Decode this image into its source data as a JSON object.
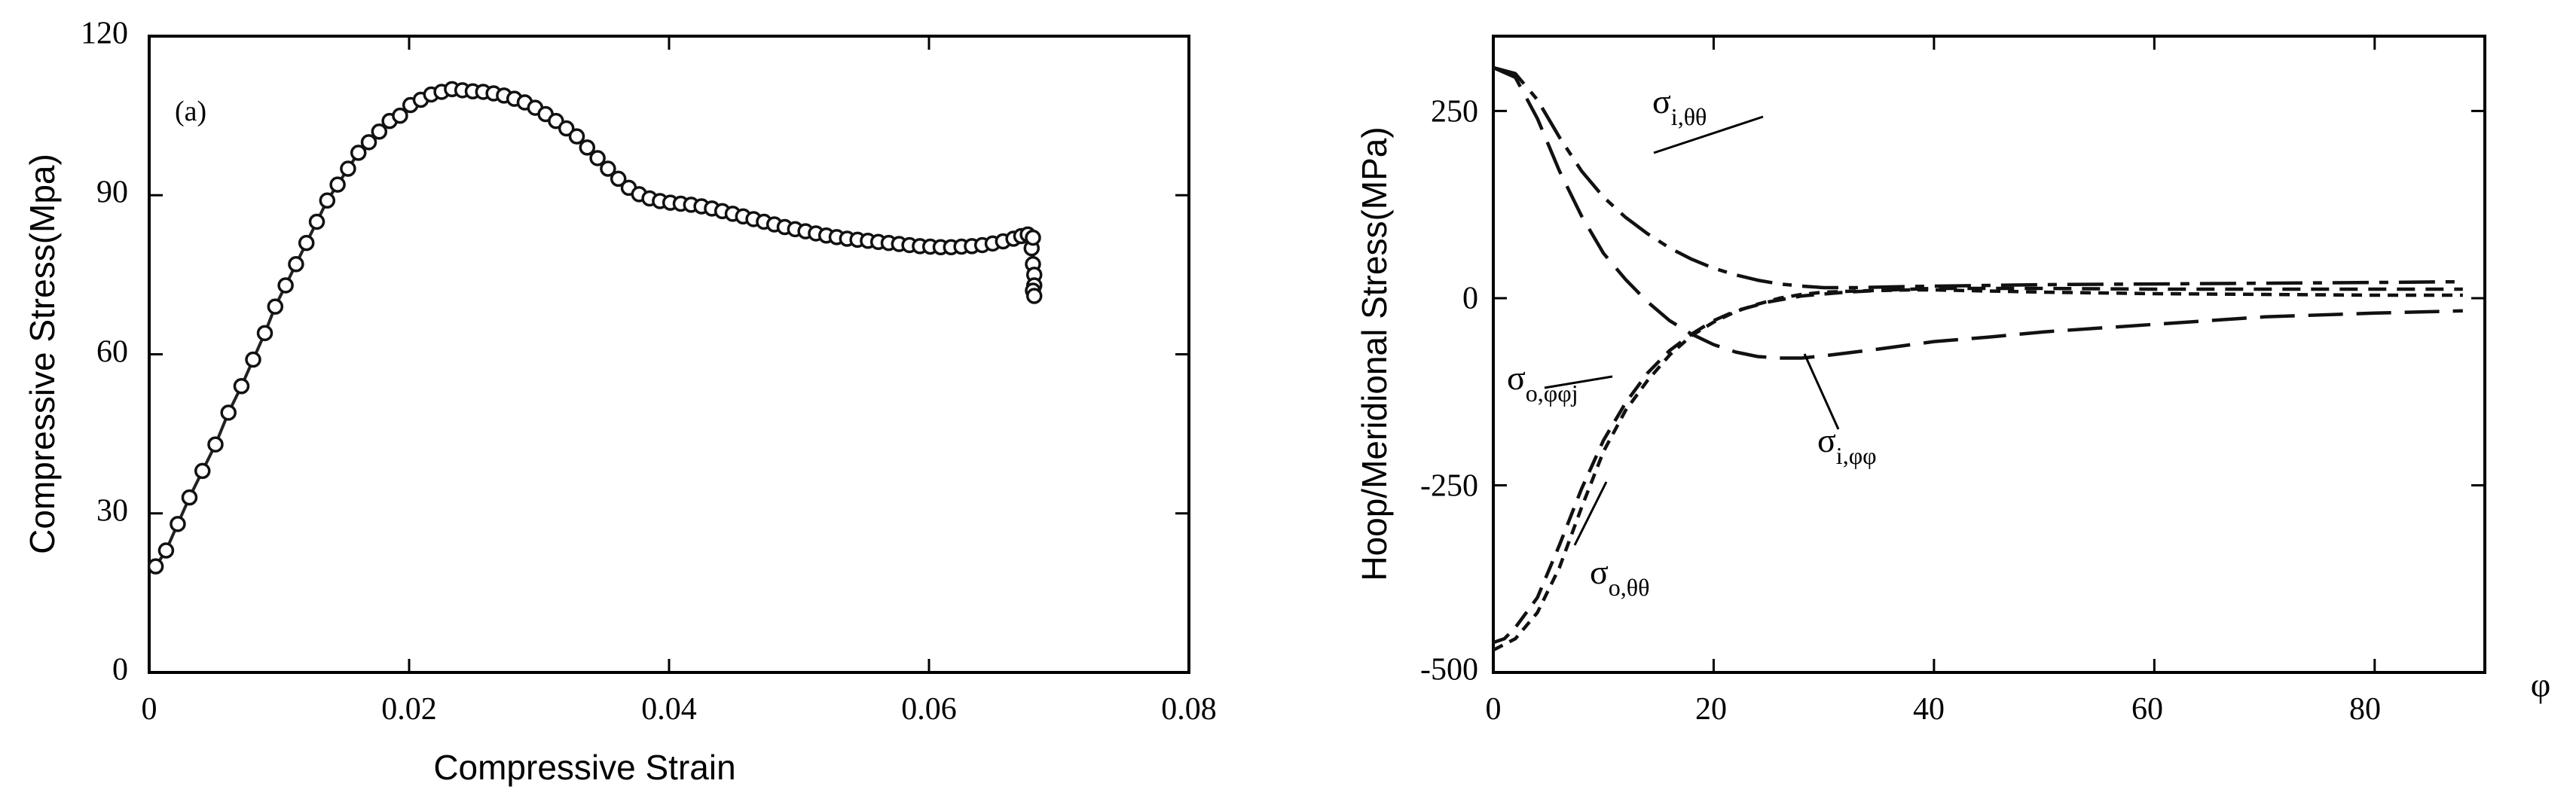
{
  "chart_data": [
    {
      "type": "scatter",
      "panel_label": "(a)",
      "xlabel": "Compressive Strain",
      "ylabel": "Compressive Stress(Mpa)",
      "xlim": [
        0,
        0.08
      ],
      "ylim": [
        0,
        120
      ],
      "x_ticks": [
        "0",
        "0.02",
        "0.04",
        "0.06",
        "0.08"
      ],
      "y_ticks": [
        "0",
        "30",
        "60",
        "90",
        "120"
      ],
      "grid": false,
      "marker": "open-circle",
      "connect_points": true,
      "series": [
        {
          "x": [
            0.0005,
            0.0013,
            0.0022,
            0.0031,
            0.0041,
            0.0051,
            0.0061,
            0.0071,
            0.008,
            0.0089,
            0.0097,
            0.0105,
            0.0113,
            0.0121,
            0.0129,
            0.0137,
            0.0145,
            0.0153,
            0.0161,
            0.0169,
            0.0177,
            0.0185,
            0.0193,
            0.0201,
            0.0209,
            0.0217,
            0.0225,
            0.0233,
            0.0241,
            0.0249,
            0.0257,
            0.0265,
            0.0273,
            0.0281,
            0.0289,
            0.0297,
            0.0305,
            0.0313,
            0.0321,
            0.0329,
            0.0337,
            0.0345,
            0.0353,
            0.0361,
            0.0369,
            0.0377,
            0.0385,
            0.0393,
            0.0401,
            0.0409,
            0.0417,
            0.0425,
            0.0433,
            0.0441,
            0.0449,
            0.0457,
            0.0465,
            0.0473,
            0.0481,
            0.0489,
            0.0497,
            0.0505,
            0.0513,
            0.0521,
            0.0529,
            0.0537,
            0.0545,
            0.0553,
            0.0561,
            0.0569,
            0.0577,
            0.0585,
            0.0593,
            0.0601,
            0.0609,
            0.0617,
            0.0625,
            0.0633,
            0.0641,
            0.0649,
            0.0657,
            0.0665,
            0.0671,
            0.0676,
            0.0679,
            0.068,
            0.0681,
            0.0681,
            0.068,
            0.0681,
            0.068
          ],
          "y": [
            20,
            23,
            28,
            33,
            38,
            43,
            49,
            54,
            59,
            64,
            69,
            73,
            77,
            81,
            85,
            89,
            92,
            95,
            98,
            100,
            102,
            104,
            105,
            107,
            108,
            109,
            109.5,
            110,
            109.8,
            109.6,
            109.5,
            109.2,
            108.8,
            108.2,
            107.5,
            106.5,
            105.3,
            104.0,
            102.6,
            101.1,
            99.0,
            97.0,
            95.0,
            93.1,
            91.4,
            90.2,
            89.4,
            88.9,
            88.6,
            88.4,
            88.2,
            87.9,
            87.5,
            87.0,
            86.5,
            86.0,
            85.5,
            85.0,
            84.5,
            84.0,
            83.6,
            83.2,
            82.8,
            82.4,
            82.1,
            81.8,
            81.6,
            81.4,
            81.2,
            81.0,
            80.8,
            80.6,
            80.4,
            80.3,
            80.2,
            80.2,
            80.3,
            80.4,
            80.6,
            80.9,
            81.3,
            81.8,
            82.3,
            82.6,
            80,
            77,
            75,
            73,
            72,
            71,
            82
          ]
        }
      ]
    },
    {
      "type": "line",
      "xlabel": "φ",
      "ylabel": "Hoop/Meridional Stress(MPa)",
      "xlim": [
        0,
        90
      ],
      "ylim": [
        -500,
        350
      ],
      "x_ticks": [
        "0",
        "20",
        "40",
        "60",
        "80"
      ],
      "y_ticks": [
        "250",
        "0",
        "-250",
        "-500"
      ],
      "grid": false,
      "series": [
        {
          "label": "σ",
          "label_sub": "i,θθ",
          "dash": "long-short",
          "x": [
            0,
            2,
            4,
            6,
            8,
            10,
            12,
            14,
            16,
            18,
            20,
            22,
            24,
            26,
            28,
            30,
            33,
            36,
            40,
            50,
            60,
            70,
            80,
            88
          ],
          "y": [
            308,
            300,
            265,
            215,
            170,
            135,
            108,
            86,
            67,
            52,
            40,
            31,
            24,
            19,
            16,
            14,
            14,
            15,
            16,
            18,
            19,
            20,
            21,
            22
          ]
        },
        {
          "label": "σ",
          "label_sub": "i,φφ",
          "dash": "long",
          "x": [
            0,
            2,
            4,
            6,
            8,
            10,
            12,
            14,
            16,
            18,
            20,
            22,
            24,
            26,
            28,
            30,
            35,
            40,
            45,
            50,
            60,
            70,
            80,
            88
          ],
          "y": [
            308,
            295,
            240,
            170,
            110,
            60,
            25,
            -5,
            -30,
            -48,
            -62,
            -72,
            -78,
            -80,
            -80,
            -77,
            -68,
            -58,
            -52,
            -45,
            -35,
            -25,
            -20,
            -17
          ]
        },
        {
          "label": "σ",
          "label_sub": "o,θθ",
          "dash": "medium",
          "x": [
            0,
            1,
            2,
            4,
            6,
            8,
            10,
            12,
            14,
            16,
            18,
            20,
            22,
            25,
            28,
            32,
            36,
            40,
            50,
            60,
            70,
            80,
            88
          ],
          "y": [
            -460,
            -455,
            -440,
            -400,
            -330,
            -255,
            -190,
            -140,
            -100,
            -70,
            -48,
            -30,
            -17,
            -5,
            3,
            8,
            11,
            13,
            13,
            12,
            12,
            12,
            12
          ]
        },
        {
          "label": "σ",
          "label_sub": "o,φφj",
          "dash": "short",
          "x": [
            0,
            2,
            4,
            6,
            8,
            10,
            12,
            14,
            16,
            18,
            20,
            22,
            24,
            26,
            28,
            30,
            34,
            38,
            40,
            50,
            60,
            70,
            80,
            88
          ],
          "y": [
            -470,
            -455,
            -420,
            -360,
            -280,
            -205,
            -150,
            -110,
            -76,
            -50,
            -32,
            -18,
            -8,
            0,
            5,
            8,
            10,
            11,
            11,
            8,
            6,
            5,
            4,
            4
          ]
        }
      ]
    }
  ]
}
